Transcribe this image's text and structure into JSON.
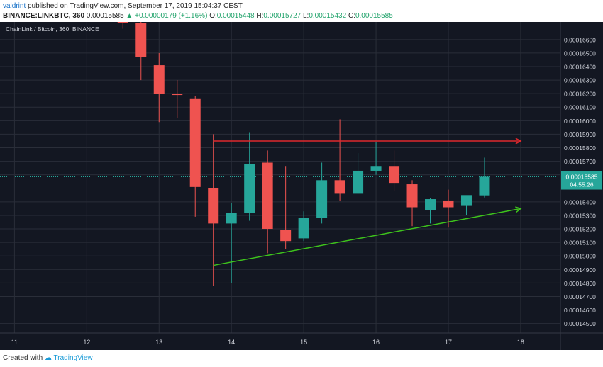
{
  "header": {
    "author": "valdrint",
    "published_text": "published on TradingView.com, September 17, 2019 15:04:37 CEST",
    "symbol": "BINANCE:LINKBTC, 360",
    "last_price": "0.00015585",
    "change": "▲ +0.00000179 (+1.16%)",
    "o_label": "O:",
    "o_value": "0.00015448",
    "h_label": "H:",
    "h_value": "0.00015727",
    "l_label": "L:",
    "l_value": "0.00015432",
    "c_label": "C:",
    "c_value": "0.00015585"
  },
  "footer": {
    "created_with": "Created with",
    "brand": "TradingView"
  },
  "colors": {
    "background": "#131722",
    "grid": "#2a2e39",
    "up": "#26a69a",
    "down": "#ef5350",
    "resistance": "#e0282d",
    "support": "#3ec41c",
    "price_tag": "#26a69a",
    "axis_text": "#d1d4dc"
  },
  "chart_data": {
    "type": "candlestick",
    "title": "ChainLink / Bitcoin, 360, BINANCE",
    "x_ticks": [
      {
        "x": 11,
        "label": "11"
      },
      {
        "x": 12,
        "label": "12"
      },
      {
        "x": 13,
        "label": "13"
      },
      {
        "x": 14,
        "label": "14"
      },
      {
        "x": 15,
        "label": "15"
      },
      {
        "x": 16,
        "label": "16"
      },
      {
        "x": 17,
        "label": "17"
      },
      {
        "x": 18,
        "label": "18"
      }
    ],
    "xlim": [
      10.8,
      18.55
    ],
    "ylim": [
      0.0001443,
      0.0001673
    ],
    "y_ticks": [
      "0.00016600",
      "0.00016500",
      "0.00016400",
      "0.00016300",
      "0.00016200",
      "0.00016100",
      "0.00016000",
      "0.00015900",
      "0.00015800",
      "0.00015700",
      "0.00015600",
      "0.00015400",
      "0.00015300",
      "0.00015200",
      "0.00015100",
      "0.00015000",
      "0.00014900",
      "0.00014800",
      "0.00014700",
      "0.00014600",
      "0.00014500"
    ],
    "candles": [
      {
        "x": 12.5,
        "o": 0.0001675,
        "h": 0.0001675,
        "l": 0.0001668,
        "c": 0.0001672
      },
      {
        "x": 12.75,
        "o": 0.0001672,
        "h": 0.0001678,
        "l": 0.000163,
        "c": 0.0001647
      },
      {
        "x": 13.0,
        "o": 0.0001641,
        "h": 0.000165,
        "l": 0.0001599,
        "c": 0.000162
      },
      {
        "x": 13.25,
        "o": 0.000162,
        "h": 0.000163,
        "l": 0.0001602,
        "c": 0.0001619
      },
      {
        "x": 13.5,
        "o": 0.0001616,
        "h": 0.0001618,
        "l": 0.0001529,
        "c": 0.0001551
      },
      {
        "x": 13.75,
        "o": 0.000155,
        "h": 0.000159,
        "l": 0.0001478,
        "c": 0.0001524
      },
      {
        "x": 14.0,
        "o": 0.0001524,
        "h": 0.0001539,
        "l": 0.000148,
        "c": 0.0001532
      },
      {
        "x": 14.25,
        "o": 0.0001532,
        "h": 0.0001591,
        "l": 0.0001526,
        "c": 0.0001568
      },
      {
        "x": 14.5,
        "o": 0.0001569,
        "h": 0.0001578,
        "l": 0.0001502,
        "c": 0.000152
      },
      {
        "x": 14.75,
        "o": 0.0001519,
        "h": 0.0001566,
        "l": 0.0001505,
        "c": 0.0001511
      },
      {
        "x": 15.0,
        "o": 0.0001513,
        "h": 0.0001533,
        "l": 0.0001511,
        "c": 0.0001528
      },
      {
        "x": 15.25,
        "o": 0.0001528,
        "h": 0.0001569,
        "l": 0.0001524,
        "c": 0.0001556
      },
      {
        "x": 15.5,
        "o": 0.0001556,
        "h": 0.0001601,
        "l": 0.0001541,
        "c": 0.0001546
      },
      {
        "x": 15.75,
        "o": 0.0001546,
        "h": 0.0001576,
        "l": 0.0001546,
        "c": 0.0001563
      },
      {
        "x": 16.0,
        "o": 0.0001563,
        "h": 0.0001584,
        "l": 0.000156,
        "c": 0.0001566
      },
      {
        "x": 16.25,
        "o": 0.0001566,
        "h": 0.0001578,
        "l": 0.0001548,
        "c": 0.0001554
      },
      {
        "x": 16.5,
        "o": 0.0001553,
        "h": 0.0001556,
        "l": 0.0001522,
        "c": 0.0001536
      },
      {
        "x": 16.75,
        "o": 0.0001534,
        "h": 0.0001543,
        "l": 0.0001524,
        "c": 0.0001542
      },
      {
        "x": 17.0,
        "o": 0.0001541,
        "h": 0.0001549,
        "l": 0.0001521,
        "c": 0.0001536
      },
      {
        "x": 17.25,
        "o": 0.0001537,
        "h": 0.0001544,
        "l": 0.000153,
        "c": 0.0001545
      },
      {
        "x": 17.5,
        "o": 0.00015448,
        "h": 0.00015727,
        "l": 0.00015432,
        "c": 0.00015585
      }
    ],
    "annotations": [
      {
        "kind": "arrow",
        "name": "resistance",
        "x1": 13.75,
        "y1": 0.0001585,
        "x2": 18.0,
        "y2": 0.0001585
      },
      {
        "kind": "arrow",
        "name": "support",
        "x1": 13.75,
        "y1": 0.0001493,
        "x2": 18.0,
        "y2": 0.0001535
      }
    ],
    "last_price_label": "0.00015585",
    "countdown_label": "04:55:26"
  }
}
